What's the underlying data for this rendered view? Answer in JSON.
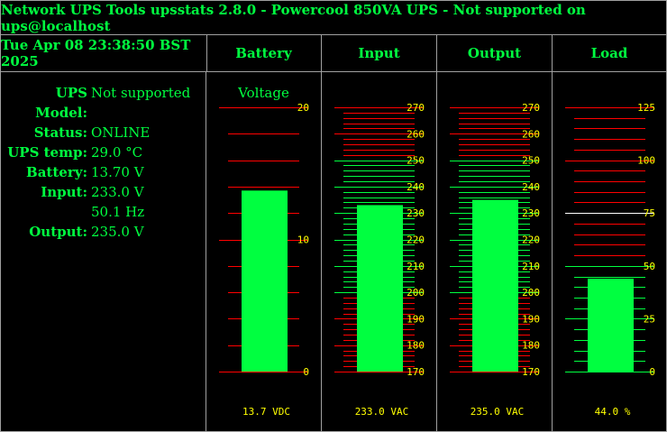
{
  "header": {
    "title": "Network UPS Tools upsstats 2.8.0 - Powercool 850VA UPS - Not supported on ups@localhost"
  },
  "datetime": "Tue Apr 08 23:38:50 BST 2025",
  "columns": [
    "Battery",
    "Input",
    "Output",
    "Load"
  ],
  "info": {
    "rows": [
      {
        "label": "UPS Model:",
        "value": "Not supported"
      },
      {
        "label": "Status:",
        "value": "ONLINE"
      },
      {
        "label": "UPS temp:",
        "value": "29.0 °C"
      },
      {
        "label": "Battery:",
        "value": "13.70 V"
      },
      {
        "label": "Input:",
        "value": "233.0 V"
      },
      {
        "label": "",
        "value": "50.1 Hz"
      },
      {
        "label": "Output:",
        "value": "235.0 V"
      }
    ]
  },
  "colors": {
    "text": "#00ff40",
    "bar": "#00ff40",
    "tick_label": "#ffff00",
    "warn_line": "#ff0000",
    "ok_line": "#00ff40",
    "marker_line": "#ffffff",
    "border": "#a0a0a0"
  },
  "chart_data": [
    {
      "type": "bar",
      "title": "Voltage",
      "values": [
        13.7
      ],
      "ylim": [
        0,
        20
      ],
      "tick_labels": [
        "20",
        "10",
        "0"
      ],
      "reading": "13.7 VDC",
      "series_name": "Battery"
    },
    {
      "type": "bar",
      "values": [
        233.0
      ],
      "ylim": [
        170,
        270
      ],
      "tick_labels": [
        "270",
        "260",
        "250",
        "240",
        "230",
        "220",
        "210",
        "200",
        "190",
        "180",
        "170"
      ],
      "reading": "233.0 VAC",
      "series_name": "Input",
      "ok_range": [
        200,
        250
      ]
    },
    {
      "type": "bar",
      "values": [
        235.0
      ],
      "ylim": [
        170,
        270
      ],
      "tick_labels": [
        "270",
        "260",
        "250",
        "240",
        "230",
        "220",
        "210",
        "200",
        "190",
        "180",
        "170"
      ],
      "reading": "235.0 VAC",
      "series_name": "Output",
      "ok_range": [
        200,
        250
      ]
    },
    {
      "type": "bar",
      "values": [
        44.0
      ],
      "ylim": [
        0,
        125
      ],
      "tick_labels": [
        "125",
        "100",
        "75",
        "50",
        "25",
        "0"
      ],
      "reading": "44.0 %",
      "series_name": "Load",
      "ok_range": [
        0,
        50
      ],
      "warn_range": [
        100,
        125
      ],
      "marker": 75
    }
  ]
}
